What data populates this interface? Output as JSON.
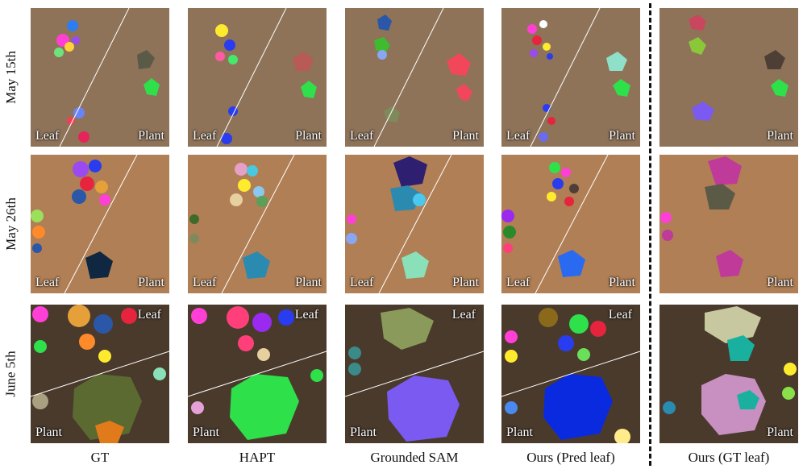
{
  "rows": [
    "May 15th",
    "May 26th",
    "June 5th"
  ],
  "columns": [
    "GT",
    "HAPT",
    "Grounded SAM",
    "Ours (Pred leaf)",
    "Ours (GT leaf)"
  ],
  "tags": {
    "leaf": "Leaf",
    "plant": "Plant"
  },
  "colors": {
    "soil_may15": "#8e7359",
    "soil_may26": "#b07f55",
    "soil_june5": "#4a3a2c",
    "divider": "#ffffff"
  }
}
